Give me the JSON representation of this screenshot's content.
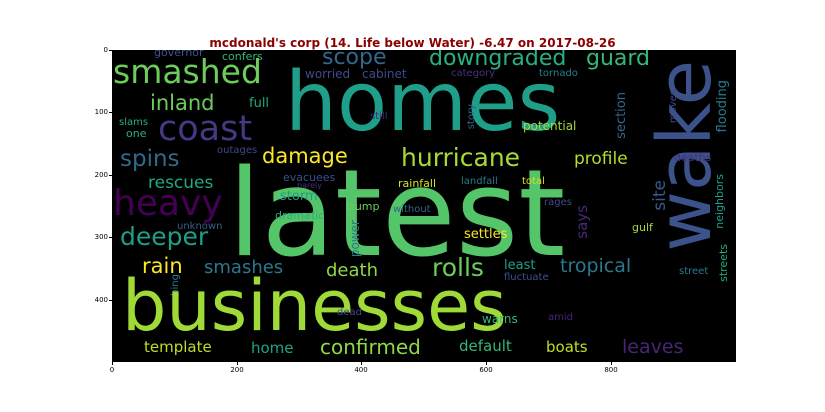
{
  "title": "mcdonald's corp (14. Life below Water) -6.47 on 2017-08-26",
  "y_ticks": [
    "0",
    "100",
    "200",
    "300",
    "400"
  ],
  "x_ticks": [
    "0",
    "200",
    "400",
    "600",
    "800"
  ],
  "words": [
    {
      "t": "governor",
      "c": "#3b528b"
    },
    {
      "t": "confers",
      "c": "#35b779"
    },
    {
      "t": "smashed",
      "c": "#6ccd5a"
    },
    {
      "t": "homes",
      "c": "#1f9e89"
    },
    {
      "t": "worried",
      "c": "#3e4a89"
    },
    {
      "t": "scope",
      "c": "#31688e"
    },
    {
      "t": "downgraded",
      "c": "#2ab07f"
    },
    {
      "t": "guard",
      "c": "#35b779"
    },
    {
      "t": "category",
      "c": "#46327e"
    },
    {
      "t": "tornado",
      "c": "#26828e"
    },
    {
      "t": "wake",
      "c": "#3b528b"
    },
    {
      "t": "cabinet",
      "c": "#3e4a89"
    },
    {
      "t": "inland",
      "c": "#6ccd5a"
    },
    {
      "t": "full",
      "c": "#22a884"
    },
    {
      "t": "coast",
      "c": "#443983"
    },
    {
      "t": "still",
      "c": "#482677"
    },
    {
      "t": "story",
      "c": "#355f8d"
    },
    {
      "t": "potential",
      "c": "#a5db36"
    },
    {
      "t": "section",
      "c": "#31688e"
    },
    {
      "t": "moves",
      "c": "#3e4a89"
    },
    {
      "t": "flooding",
      "c": "#2a788e"
    },
    {
      "t": "slams",
      "c": "#2ab07f"
    },
    {
      "t": "one",
      "c": "#2ab07f"
    },
    {
      "t": "outages",
      "c": "#3e4a89"
    },
    {
      "t": "damage",
      "c": "#fde725"
    },
    {
      "t": "hurricane",
      "c": "#a5db36"
    },
    {
      "t": "spins",
      "c": "#31688e"
    },
    {
      "t": "profile",
      "c": "#b5de2b"
    },
    {
      "t": "deaths",
      "c": "#472d7b"
    },
    {
      "t": "heavy",
      "c": "#440154"
    },
    {
      "t": "evacuees",
      "c": "#3b528b"
    },
    {
      "t": "barely",
      "c": "#472d7b"
    },
    {
      "t": "rescues",
      "c": "#22a884"
    },
    {
      "t": "latest",
      "c": "#54c568"
    },
    {
      "t": "rainfall",
      "c": "#d8e219"
    },
    {
      "t": "landfall",
      "c": "#2a788e"
    },
    {
      "t": "total",
      "c": "#d8e219"
    },
    {
      "t": "site",
      "c": "#38598c"
    },
    {
      "t": "neighbors",
      "c": "#1f9e89"
    },
    {
      "t": "storm",
      "c": "#1f9e89"
    },
    {
      "t": "dramatic",
      "c": "#2ab07f"
    },
    {
      "t": "trump",
      "c": "#6ccd5a"
    },
    {
      "t": "without",
      "c": "#31688e"
    },
    {
      "t": "rages",
      "c": "#3e4a89"
    },
    {
      "t": "unknown",
      "c": "#355f8d"
    },
    {
      "t": "deeper",
      "c": "#1f9e89"
    },
    {
      "t": "power",
      "c": "#2a788e"
    },
    {
      "t": "says",
      "c": "#482878"
    },
    {
      "t": "gulf",
      "c": "#a5db36"
    },
    {
      "t": "settles",
      "c": "#fde725"
    },
    {
      "t": "rain",
      "c": "#fde725"
    },
    {
      "t": "smashes",
      "c": "#2a788e"
    },
    {
      "t": "death",
      "c": "#8fd744"
    },
    {
      "t": "rolls",
      "c": "#6ccd5a"
    },
    {
      "t": "least",
      "c": "#1fa187"
    },
    {
      "t": "tropical",
      "c": "#2a788e"
    },
    {
      "t": "fluctuate",
      "c": "#3b528b"
    },
    {
      "t": "street",
      "c": "#2a788e"
    },
    {
      "t": "streets",
      "c": "#22a884"
    },
    {
      "t": "smashing",
      "c": "#2a788e"
    },
    {
      "t": "businesses",
      "c": "#a0da39"
    },
    {
      "t": "dead",
      "c": "#3e4a89"
    },
    {
      "t": "warns",
      "c": "#35b779"
    },
    {
      "t": "amid",
      "c": "#482677"
    },
    {
      "t": "template",
      "c": "#bddf26"
    },
    {
      "t": "home",
      "c": "#1fa187"
    },
    {
      "t": "confirmed",
      "c": "#8fd744"
    },
    {
      "t": "default",
      "c": "#35b779"
    },
    {
      "t": "boats",
      "c": "#bddf26"
    },
    {
      "t": "leaves",
      "c": "#482677"
    }
  ]
}
